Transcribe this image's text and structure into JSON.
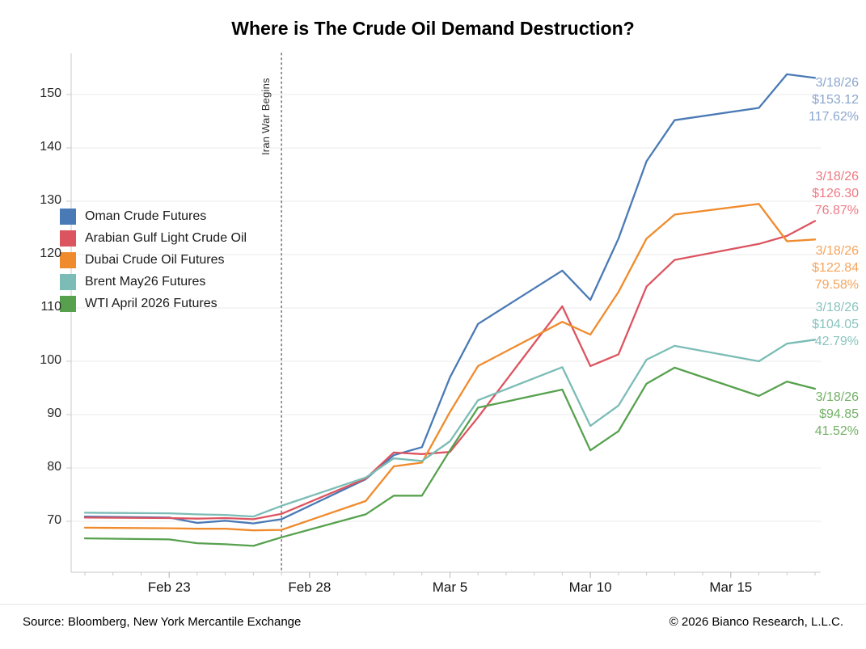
{
  "title": "Where is The Crude Oil Demand Destruction?",
  "footer": {
    "source": "Source: Bloomberg, New York Mercantile Exchange",
    "copyright": "© 2026 Bianco Research, L.L.C."
  },
  "chart_data": {
    "type": "line",
    "title": "Where is The Crude Oil Demand Destruction?",
    "ylim": [
      60.5,
      157
    ],
    "yticks": [
      "70",
      "80",
      "90",
      "100",
      "110",
      "120",
      "130",
      "140",
      "150"
    ],
    "grid": "horizontal-only",
    "legend_position": "upper-left-inside",
    "x_axis": {
      "unit": "days",
      "first_day": "Feb 20",
      "last_day": "Mar 18",
      "total_day_span": 26,
      "tick_labels": [
        {
          "label": "Feb 23",
          "day": 3
        },
        {
          "label": "Feb 28",
          "day": 8
        },
        {
          "label": "Mar 5",
          "day": 13
        },
        {
          "label": "Mar 10",
          "day": 18
        },
        {
          "label": "Mar 15",
          "day": 23
        }
      ]
    },
    "event_line": {
      "label": "Iran War Begins",
      "day": 7,
      "style": "dotted-vertical-gray"
    },
    "series": [
      {
        "name": "Oman Crude Futures",
        "color": "#4a7ab5",
        "annotation": {
          "date": "3/18/26",
          "price": "$153.12",
          "pct": "117.62%",
          "text_color": "#8ba6ce"
        },
        "points": [
          [
            0,
            70.9
          ],
          [
            3,
            70.7
          ],
          [
            4,
            69.7
          ],
          [
            5,
            70.1
          ],
          [
            6,
            69.6
          ],
          [
            7,
            70.4
          ],
          [
            10,
            77.9
          ],
          [
            11,
            82.4
          ],
          [
            12,
            83.9
          ],
          [
            13,
            97.0
          ],
          [
            14,
            107.0
          ],
          [
            17,
            117.0
          ],
          [
            18,
            111.5
          ],
          [
            19,
            123.0
          ],
          [
            20,
            137.5
          ],
          [
            21,
            145.2
          ],
          [
            24,
            147.5
          ],
          [
            25,
            153.8
          ],
          [
            26,
            153.12
          ]
        ]
      },
      {
        "name": "Arabian Gulf Light Crude Oil",
        "color": "#dc5460",
        "annotation": {
          "date": "3/18/26",
          "price": "$126.30",
          "pct": "76.87%",
          "text_color": "#ee7a84"
        },
        "points": [
          [
            0,
            70.7
          ],
          [
            3,
            70.6
          ],
          [
            4,
            70.5
          ],
          [
            5,
            70.6
          ],
          [
            6,
            70.4
          ],
          [
            7,
            71.4
          ],
          [
            10,
            78.0
          ],
          [
            11,
            82.9
          ],
          [
            12,
            82.6
          ],
          [
            13,
            83.0
          ],
          [
            14,
            89.5
          ],
          [
            17,
            110.3
          ],
          [
            18,
            99.1
          ],
          [
            19,
            101.3
          ],
          [
            20,
            114.0
          ],
          [
            21,
            119.0
          ],
          [
            24,
            122.0
          ],
          [
            25,
            123.5
          ],
          [
            26,
            126.3
          ]
        ]
      },
      {
        "name": "Dubai Crude Oil Futures",
        "color": "#f08b2d",
        "annotation": {
          "date": "3/18/26",
          "price": "$122.84",
          "pct": "79.58%",
          "text_color": "#f6a45c"
        },
        "points": [
          [
            0,
            68.8
          ],
          [
            3,
            68.7
          ],
          [
            4,
            68.6
          ],
          [
            5,
            68.6
          ],
          [
            6,
            68.3
          ],
          [
            7,
            68.4
          ],
          [
            10,
            73.8
          ],
          [
            11,
            80.3
          ],
          [
            12,
            81.0
          ],
          [
            13,
            90.5
          ],
          [
            14,
            99.1
          ],
          [
            17,
            107.4
          ],
          [
            18,
            105.0
          ],
          [
            19,
            113.0
          ],
          [
            20,
            123.0
          ],
          [
            21,
            127.5
          ],
          [
            24,
            129.5
          ],
          [
            25,
            122.5
          ],
          [
            26,
            122.84
          ]
        ]
      },
      {
        "name": "Brent May26 Futures",
        "color": "#7bbcb6",
        "annotation": {
          "date": "3/18/26",
          "price": "$104.05",
          "pct": "42.79%",
          "text_color": "#8ac4be"
        },
        "points": [
          [
            0,
            71.6
          ],
          [
            3,
            71.5
          ],
          [
            4,
            71.3
          ],
          [
            5,
            71.2
          ],
          [
            6,
            70.9
          ],
          [
            7,
            72.9
          ],
          [
            10,
            78.2
          ],
          [
            11,
            81.8
          ],
          [
            12,
            81.3
          ],
          [
            13,
            85.0
          ],
          [
            14,
            92.7
          ],
          [
            17,
            98.9
          ],
          [
            18,
            87.9
          ],
          [
            19,
            91.7
          ],
          [
            20,
            100.3
          ],
          [
            21,
            102.9
          ],
          [
            24,
            100.0
          ],
          [
            25,
            103.3
          ],
          [
            26,
            104.05
          ]
        ]
      },
      {
        "name": "WTI April 2026 Futures",
        "color": "#57a14e",
        "annotation": {
          "date": "3/18/26",
          "price": "$94.85",
          "pct": "41.52%",
          "text_color": "#74b167"
        },
        "points": [
          [
            0,
            66.8
          ],
          [
            3,
            66.6
          ],
          [
            4,
            65.9
          ],
          [
            5,
            65.7
          ],
          [
            6,
            65.4
          ],
          [
            7,
            67.0
          ],
          [
            10,
            71.3
          ],
          [
            11,
            74.8
          ],
          [
            12,
            74.8
          ],
          [
            13,
            83.3
          ],
          [
            14,
            91.3
          ],
          [
            17,
            94.7
          ],
          [
            18,
            83.3
          ],
          [
            19,
            86.9
          ],
          [
            20,
            95.8
          ],
          [
            21,
            98.8
          ],
          [
            24,
            93.5
          ],
          [
            25,
            96.2
          ],
          [
            26,
            94.85
          ]
        ]
      }
    ]
  }
}
